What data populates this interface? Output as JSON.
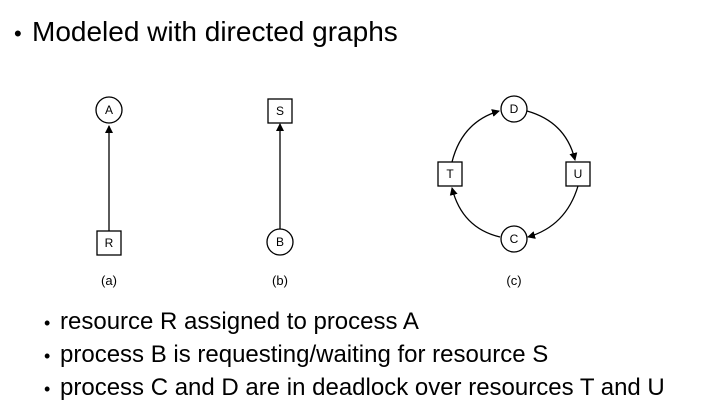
{
  "title": "Modeled with directed graphs",
  "diagram": {
    "panels": [
      {
        "caption": "(a)",
        "nodes": [
          {
            "id": "A",
            "label": "A",
            "kind": "process-circle"
          },
          {
            "id": "R",
            "label": "R",
            "kind": "resource-square"
          }
        ],
        "edges": [
          {
            "from": "R",
            "to": "A"
          }
        ]
      },
      {
        "caption": "(b)",
        "nodes": [
          {
            "id": "S",
            "label": "S",
            "kind": "resource-square"
          },
          {
            "id": "B",
            "label": "B",
            "kind": "process-circle"
          }
        ],
        "edges": [
          {
            "from": "B",
            "to": "S"
          }
        ]
      },
      {
        "caption": "(c)",
        "nodes": [
          {
            "id": "D",
            "label": "D",
            "kind": "process-circle"
          },
          {
            "id": "U",
            "label": "U",
            "kind": "resource-square"
          },
          {
            "id": "C",
            "label": "C",
            "kind": "process-circle"
          },
          {
            "id": "T",
            "label": "T",
            "kind": "resource-square"
          }
        ],
        "edges": [
          {
            "from": "D",
            "to": "U"
          },
          {
            "from": "U",
            "to": "C"
          },
          {
            "from": "C",
            "to": "T"
          },
          {
            "from": "T",
            "to": "D"
          }
        ]
      }
    ]
  },
  "bullets": [
    "resource R assigned to process A",
    "process B is requesting/waiting for resource S",
    "process C and D are in deadlock over resources T and U"
  ]
}
